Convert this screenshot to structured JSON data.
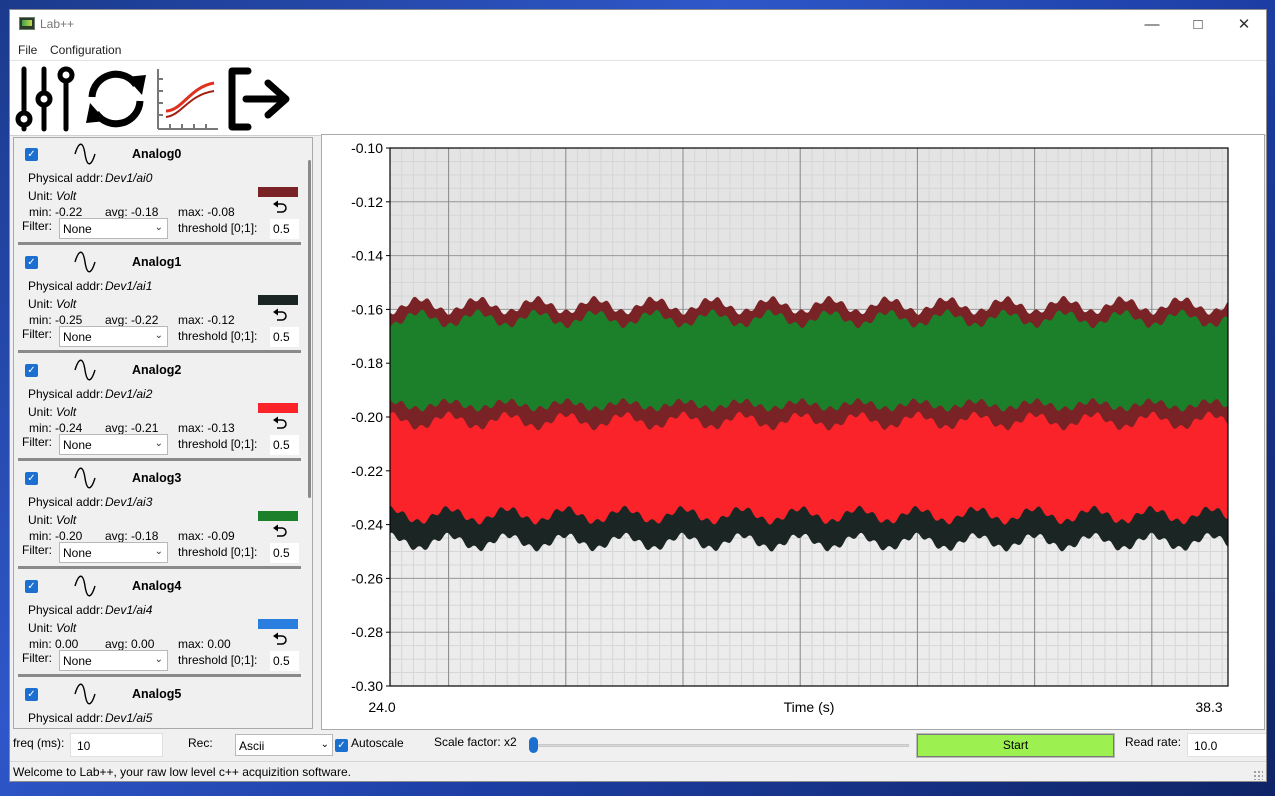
{
  "window": {
    "title": "Lab++"
  },
  "menu": {
    "items": [
      "File",
      "Configuration"
    ]
  },
  "toolbar": {
    "icons": [
      "sliders-icon",
      "refresh-icon",
      "chart-icon",
      "exit-icon"
    ]
  },
  "channels": [
    {
      "name": "Analog0",
      "physical_label": "Physical addr:",
      "physical": "Dev1/ai0",
      "unit_label": "Unit:",
      "unit": "Volt",
      "min": "min: -0.22",
      "avg": "avg: -0.18",
      "max": "max: -0.08",
      "filter_label": "Filter:",
      "filter": "None",
      "threshold_label": "threshold [0;1]:",
      "threshold": "0.5",
      "color": "#7a2326",
      "checked": true
    },
    {
      "name": "Analog1",
      "physical_label": "Physical addr:",
      "physical": "Dev1/ai1",
      "unit_label": "Unit:",
      "unit": "Volt",
      "min": "min: -0.25",
      "avg": "avg: -0.22",
      "max": "max: -0.12",
      "filter_label": "Filter:",
      "filter": "None",
      "threshold_label": "threshold [0;1]:",
      "threshold": "0.5",
      "color": "#1b2624",
      "checked": true
    },
    {
      "name": "Analog2",
      "physical_label": "Physical addr:",
      "physical": "Dev1/ai2",
      "unit_label": "Unit:",
      "unit": "Volt",
      "min": "min: -0.24",
      "avg": "avg: -0.21",
      "max": "max: -0.13",
      "filter_label": "Filter:",
      "filter": "None",
      "threshold_label": "threshold [0;1]:",
      "threshold": "0.5",
      "color": "#fa2329",
      "checked": true
    },
    {
      "name": "Analog3",
      "physical_label": "Physical addr:",
      "physical": "Dev1/ai3",
      "unit_label": "Unit:",
      "unit": "Volt",
      "min": "min: -0.20",
      "avg": "avg: -0.18",
      "max": "max: -0.09",
      "filter_label": "Filter:",
      "filter": "None",
      "threshold_label": "threshold [0;1]:",
      "threshold": "0.5",
      "color": "#1c7f2a",
      "checked": true
    },
    {
      "name": "Analog4",
      "physical_label": "Physical addr:",
      "physical": "Dev1/ai4",
      "unit_label": "Unit:",
      "unit": "Volt",
      "min": "min: 0.00",
      "avg": "avg: 0.00",
      "max": "max: 0.00",
      "filter_label": "Filter:",
      "filter": "None",
      "threshold_label": "threshold [0;1]:",
      "threshold": "0.5",
      "color": "#2a7ee0",
      "checked": true
    },
    {
      "name": "Analog5",
      "physical_label": "Physical addr:",
      "physical": "Dev1/ai5",
      "unit_label": "",
      "unit": "",
      "min": "",
      "avg": "",
      "max": "",
      "filter_label": "",
      "filter": "",
      "threshold_label": "",
      "threshold": "",
      "color": "",
      "checked": true
    }
  ],
  "controls": {
    "freq_label": "freq (ms):",
    "freq_value": "10",
    "rec_label": "Rec:",
    "rec_value": "Ascii",
    "autoscale_label": "Autoscale",
    "autoscale_checked": true,
    "scale_label": "Scale factor: x2",
    "scale_position": 0.0,
    "start_label": "Start",
    "read_rate_label": "Read rate:",
    "read_rate_value": "10.0"
  },
  "status": {
    "message": "Welcome to Lab++, your raw low level c++ acquizition software."
  },
  "chart_data": {
    "type": "line",
    "xlabel": "Time (s)",
    "xlim": [
      24.0,
      38.3
    ],
    "x_tick_labels": [
      "24.0",
      "38.3"
    ],
    "ylim": [
      -0.3,
      -0.1
    ],
    "y_ticks": [
      "-0.10",
      "-0.12",
      "-0.14",
      "-0.16",
      "-0.18",
      "-0.20",
      "-0.22",
      "-0.24",
      "-0.26",
      "-0.28",
      "-0.30"
    ],
    "grid": true,
    "series": [
      {
        "channel": "Analog0",
        "color": "#7a2326",
        "upper": -0.16,
        "lower": -0.2,
        "peak_upper": -0.155,
        "peak_lower": -0.205
      },
      {
        "channel": "Analog1",
        "color": "#1b2624",
        "upper": -0.215,
        "lower": -0.245,
        "peak_upper": -0.212,
        "peak_lower": -0.25
      },
      {
        "channel": "Analog2",
        "color": "#fa2329",
        "upper": -0.19,
        "lower": -0.235,
        "peak_upper": -0.185,
        "peak_lower": -0.24
      },
      {
        "channel": "Analog3",
        "color": "#1c7f2a",
        "upper": -0.165,
        "lower": -0.195,
        "peak_upper": -0.16,
        "peak_lower": -0.198
      }
    ],
    "cycle_period": 1.0
  }
}
